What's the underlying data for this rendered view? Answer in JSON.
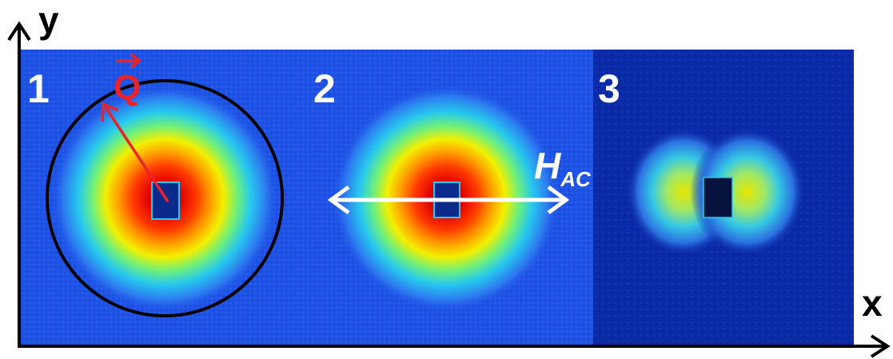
{
  "axes": {
    "x_label": "x",
    "y_label": "y"
  },
  "panels": [
    {
      "number": "1",
      "pattern": "isotropic-ring",
      "annotation": "Q",
      "annotation_color": "#e8232a"
    },
    {
      "number": "2",
      "pattern": "isotropic-ring",
      "annotation": "H",
      "annotation_subscript": "AC",
      "annotation_color": "#ffffff"
    },
    {
      "number": "3",
      "pattern": "two-lobe-horizontal"
    }
  ],
  "colors": {
    "background_panel_1_2": "#1f53e6",
    "background_panel_3": "#0b2aa8",
    "circle": "#000000",
    "q_vector": "#e8232a",
    "h_arrow": "#ffffff"
  }
}
